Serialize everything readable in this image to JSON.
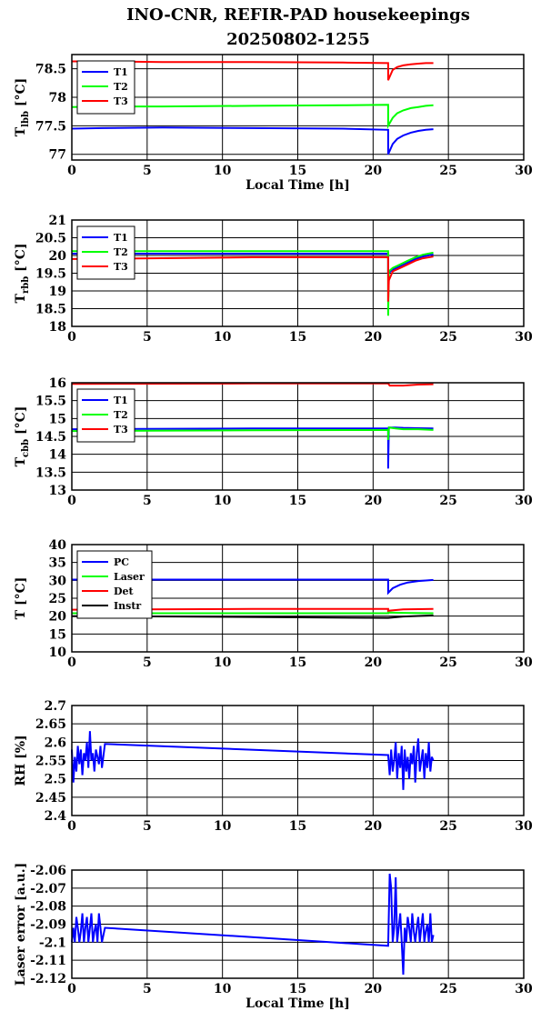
{
  "title_line1": "INO-CNR, REFIR-PAD housekeepings",
  "title_line2": "20250802-1255",
  "colors": {
    "blue": "#0000ff",
    "green": "#00ff00",
    "red": "#ff0000",
    "black": "#000000"
  },
  "chart_data": [
    {
      "type": "line",
      "ylabel_main": "T",
      "ylabel_sub": "lbb",
      "ylabel_unit": "[°C]",
      "xlabel": "Local Time [h]",
      "xlim": [
        0,
        30
      ],
      "xticks": [
        "0",
        "5",
        "10",
        "15",
        "20",
        "25",
        "30"
      ],
      "ylim": [
        76.9,
        78.75
      ],
      "yticks": [
        {
          "v": 77,
          "l": "77"
        },
        {
          "v": 77.5,
          "l": "77.5"
        },
        {
          "v": 78,
          "l": "78"
        },
        {
          "v": 78.5,
          "l": "78.5"
        }
      ],
      "grid": true,
      "legend": "top-left",
      "series": [
        {
          "name": "T1",
          "color": "blue",
          "x": [
            0,
            2,
            6,
            12,
            18,
            21,
            21.0,
            21.3,
            21.6,
            22,
            22.5,
            23,
            23.5,
            24
          ],
          "y": [
            77.45,
            77.46,
            77.47,
            77.46,
            77.45,
            77.43,
            77.0,
            77.18,
            77.27,
            77.33,
            77.38,
            77.41,
            77.43,
            77.44
          ]
        },
        {
          "name": "T2",
          "color": "green",
          "x": [
            0,
            2,
            6,
            12,
            18,
            21,
            21.0,
            21.3,
            21.6,
            22,
            22.5,
            23,
            23.5,
            24
          ],
          "y": [
            77.83,
            77.84,
            77.84,
            77.85,
            77.86,
            77.87,
            77.5,
            77.64,
            77.72,
            77.77,
            77.81,
            77.83,
            77.85,
            77.86
          ]
        },
        {
          "name": "T3",
          "color": "red",
          "x": [
            0,
            2,
            6,
            12,
            18,
            21,
            21.0,
            21.3,
            21.6,
            22,
            22.5,
            23,
            23.5,
            24
          ],
          "y": [
            78.63,
            78.63,
            78.62,
            78.62,
            78.61,
            78.6,
            78.3,
            78.48,
            78.53,
            78.56,
            78.58,
            78.59,
            78.6,
            78.6
          ]
        }
      ]
    },
    {
      "type": "line",
      "ylabel_main": "T",
      "ylabel_sub": "rbb",
      "ylabel_unit": "[°C]",
      "xlabel": "",
      "xlim": [
        0,
        30
      ],
      "xticks": [
        "0",
        "5",
        "10",
        "15",
        "20",
        "25",
        "30"
      ],
      "ylim": [
        18,
        21
      ],
      "yticks": [
        {
          "v": 18,
          "l": "18"
        },
        {
          "v": 18.5,
          "l": "18.5"
        },
        {
          "v": 19,
          "l": "19"
        },
        {
          "v": 19.5,
          "l": "19.5"
        },
        {
          "v": 20,
          "l": "20"
        },
        {
          "v": 20.5,
          "l": "20.5"
        },
        {
          "v": 21,
          "l": "21"
        }
      ],
      "grid": true,
      "legend": "top-left",
      "series": [
        {
          "name": "T1",
          "color": "blue",
          "x": [
            0,
            12,
            21,
            21.0,
            21.3,
            21.8,
            22.3,
            22.8,
            23.3,
            24
          ],
          "y": [
            20.05,
            20.05,
            20.05,
            19.5,
            19.6,
            19.7,
            19.8,
            19.9,
            19.97,
            20.03
          ]
        },
        {
          "name": "T2",
          "color": "green",
          "x": [
            0,
            12,
            21,
            21.0,
            21.05,
            21.3,
            21.8,
            22.3,
            22.8,
            23.3,
            24
          ],
          "y": [
            20.12,
            20.12,
            20.12,
            18.3,
            19.55,
            19.65,
            19.75,
            19.85,
            19.95,
            20.02,
            20.08
          ]
        },
        {
          "name": "T3",
          "color": "red",
          "x": [
            0,
            12,
            21,
            21.0,
            21.05,
            21.3,
            21.8,
            22.3,
            22.8,
            23.3,
            24
          ],
          "y": [
            19.9,
            19.95,
            19.95,
            18.7,
            19.3,
            19.55,
            19.65,
            19.75,
            19.85,
            19.92,
            19.97
          ]
        }
      ]
    },
    {
      "type": "line",
      "ylabel_main": "T",
      "ylabel_sub": "cbb",
      "ylabel_unit": "[°C]",
      "xlabel": "",
      "xlim": [
        0,
        30
      ],
      "xticks": [
        "0",
        "5",
        "10",
        "15",
        "20",
        "25",
        "30"
      ],
      "ylim": [
        13,
        16
      ],
      "yticks": [
        {
          "v": 13,
          "l": "13"
        },
        {
          "v": 13.5,
          "l": "13.5"
        },
        {
          "v": 14,
          "l": "14"
        },
        {
          "v": 14.5,
          "l": "14.5"
        },
        {
          "v": 15,
          "l": "15"
        },
        {
          "v": 15.5,
          "l": "15.5"
        },
        {
          "v": 16,
          "l": "16"
        }
      ],
      "grid": true,
      "legend": "top-left",
      "series": [
        {
          "name": "T1",
          "color": "blue",
          "x": [
            0,
            12,
            21,
            21.0,
            21.05,
            21.5,
            22,
            23,
            24
          ],
          "y": [
            14.7,
            14.72,
            14.72,
            13.6,
            14.75,
            14.75,
            14.74,
            14.73,
            14.72
          ]
        },
        {
          "name": "T2",
          "color": "green",
          "x": [
            0,
            12,
            21,
            21.0,
            21.05,
            21.5,
            22,
            23,
            24
          ],
          "y": [
            14.65,
            14.67,
            14.68,
            14.4,
            14.75,
            14.72,
            14.7,
            14.7,
            14.68
          ]
        },
        {
          "name": "T3",
          "color": "red",
          "x": [
            0,
            12,
            21,
            21.1,
            22,
            23,
            24
          ],
          "y": [
            15.97,
            15.98,
            15.98,
            15.92,
            15.92,
            15.95,
            15.96
          ]
        }
      ]
    },
    {
      "type": "line",
      "ylabel_main": "T",
      "ylabel_sub": "",
      "ylabel_unit": "[°C]",
      "xlabel": "",
      "xlim": [
        0,
        30
      ],
      "xticks": [
        "0",
        "5",
        "10",
        "15",
        "20",
        "25",
        "30"
      ],
      "ylim": [
        10,
        40
      ],
      "yticks": [
        {
          "v": 10,
          "l": "10"
        },
        {
          "v": 15,
          "l": "15"
        },
        {
          "v": 20,
          "l": "20"
        },
        {
          "v": 25,
          "l": "25"
        },
        {
          "v": 30,
          "l": "30"
        },
        {
          "v": 35,
          "l": "35"
        },
        {
          "v": 40,
          "l": "40"
        }
      ],
      "grid": true,
      "legend": "top-left",
      "series": [
        {
          "name": "PC",
          "color": "blue",
          "x": [
            0,
            12,
            21,
            21.0,
            21.3,
            21.8,
            22.3,
            23,
            24
          ],
          "y": [
            30.2,
            30.2,
            30.2,
            26.5,
            27.8,
            28.8,
            29.4,
            29.8,
            30.1
          ]
        },
        {
          "name": "Laser",
          "color": "green",
          "x": [
            0,
            12,
            21,
            21.0,
            22,
            24
          ],
          "y": [
            20.8,
            20.8,
            20.8,
            21.0,
            20.9,
            20.8
          ]
        },
        {
          "name": "Det",
          "color": "red",
          "x": [
            0,
            12,
            21,
            21.0,
            22,
            24
          ],
          "y": [
            21.8,
            22.0,
            22.0,
            21.5,
            21.9,
            22.0
          ]
        },
        {
          "name": "Instr",
          "color": "black",
          "x": [
            0,
            2,
            21,
            22,
            24
          ],
          "y": [
            20.0,
            20.0,
            19.5,
            19.9,
            20.2
          ]
        }
      ]
    },
    {
      "type": "line",
      "ylabel_main": "RH [%]",
      "ylabel_sub": "",
      "ylabel_unit": "",
      "xlabel": "",
      "xlim": [
        0,
        30
      ],
      "xticks": [
        "0",
        "5",
        "10",
        "15",
        "20",
        "25",
        "30"
      ],
      "ylim": [
        2.4,
        2.7
      ],
      "yticks": [
        {
          "v": 2.4,
          "l": "2.4"
        },
        {
          "v": 2.45,
          "l": "2.45"
        },
        {
          "v": 2.5,
          "l": "2.5"
        },
        {
          "v": 2.55,
          "l": "2.55"
        },
        {
          "v": 2.6,
          "l": "2.6"
        },
        {
          "v": 2.65,
          "l": "2.65"
        },
        {
          "v": 2.7,
          "l": "2.7"
        }
      ],
      "grid": true,
      "legend": "",
      "series": [
        {
          "name": "",
          "color": "blue",
          "x": [
            0,
            0.1,
            0.2,
            0.3,
            0.4,
            0.5,
            0.6,
            0.7,
            0.8,
            0.9,
            1.0,
            1.1,
            1.2,
            1.3,
            1.4,
            1.5,
            1.6,
            1.7,
            1.8,
            1.9,
            2.0,
            2.2,
            21.0,
            21.1,
            21.2,
            21.3,
            21.4,
            21.5,
            21.6,
            21.7,
            21.8,
            21.9,
            22.0,
            22.1,
            22.2,
            22.3,
            22.4,
            22.5,
            22.6,
            22.7,
            22.8,
            22.9,
            23.0,
            23.1,
            23.2,
            23.3,
            23.4,
            23.5,
            23.6,
            23.7,
            23.8,
            23.9,
            24.0
          ],
          "y": [
            2.58,
            2.49,
            2.56,
            2.52,
            2.59,
            2.54,
            2.58,
            2.51,
            2.57,
            2.55,
            2.6,
            2.53,
            2.63,
            2.55,
            2.57,
            2.52,
            2.58,
            2.56,
            2.54,
            2.59,
            2.53,
            2.595,
            2.565,
            2.51,
            2.58,
            2.52,
            2.55,
            2.6,
            2.5,
            2.57,
            2.53,
            2.59,
            2.47,
            2.58,
            2.52,
            2.56,
            2.5,
            2.57,
            2.54,
            2.59,
            2.49,
            2.57,
            2.61,
            2.52,
            2.55,
            2.58,
            2.5,
            2.57,
            2.53,
            2.6,
            2.52,
            2.56,
            2.55
          ]
        }
      ]
    },
    {
      "type": "line",
      "ylabel_main": "Laser error [a.u.]",
      "ylabel_sub": "",
      "ylabel_unit": "",
      "xlabel": "Local Time [h]",
      "xlim": [
        0,
        30
      ],
      "xticks": [
        "0",
        "5",
        "10",
        "15",
        "20",
        "25",
        "30"
      ],
      "ylim": [
        -2.12,
        -2.06
      ],
      "yticks": [
        {
          "v": -2.12,
          "l": "-2.12"
        },
        {
          "v": -2.11,
          "l": "-2.11"
        },
        {
          "v": -2.1,
          "l": "-2.1"
        },
        {
          "v": -2.09,
          "l": "-2.09"
        },
        {
          "v": -2.08,
          "l": "-2.08"
        },
        {
          "v": -2.07,
          "l": "-2.07"
        },
        {
          "v": -2.06,
          "l": "-2.06"
        }
      ],
      "grid": true,
      "legend": "",
      "series": [
        {
          "name": "",
          "color": "blue",
          "x": [
            0,
            0.1,
            0.2,
            0.3,
            0.4,
            0.5,
            0.6,
            0.7,
            0.8,
            0.9,
            1.0,
            1.1,
            1.2,
            1.3,
            1.4,
            1.5,
            1.6,
            1.7,
            1.8,
            1.9,
            2.0,
            2.2,
            21.0,
            21.1,
            21.2,
            21.3,
            21.4,
            21.5,
            21.6,
            21.7,
            21.8,
            21.9,
            22.0,
            22.1,
            22.2,
            22.3,
            22.4,
            22.5,
            22.6,
            22.7,
            22.8,
            22.9,
            23.0,
            23.1,
            23.2,
            23.3,
            23.4,
            23.5,
            23.6,
            23.7,
            23.8,
            23.9,
            24.0
          ],
          "y": [
            -2.1,
            -2.092,
            -2.1,
            -2.086,
            -2.092,
            -2.1,
            -2.094,
            -2.084,
            -2.1,
            -2.092,
            -2.086,
            -2.1,
            -2.092,
            -2.084,
            -2.1,
            -2.094,
            -2.09,
            -2.1,
            -2.084,
            -2.092,
            -2.1,
            -2.092,
            -2.102,
            -2.062,
            -2.07,
            -2.1,
            -2.092,
            -2.064,
            -2.1,
            -2.092,
            -2.084,
            -2.1,
            -2.118,
            -2.092,
            -2.1,
            -2.086,
            -2.092,
            -2.1,
            -2.084,
            -2.094,
            -2.1,
            -2.092,
            -2.086,
            -2.1,
            -2.092,
            -2.084,
            -2.1,
            -2.094,
            -2.09,
            -2.1,
            -2.084,
            -2.1,
            -2.096
          ]
        }
      ]
    }
  ]
}
